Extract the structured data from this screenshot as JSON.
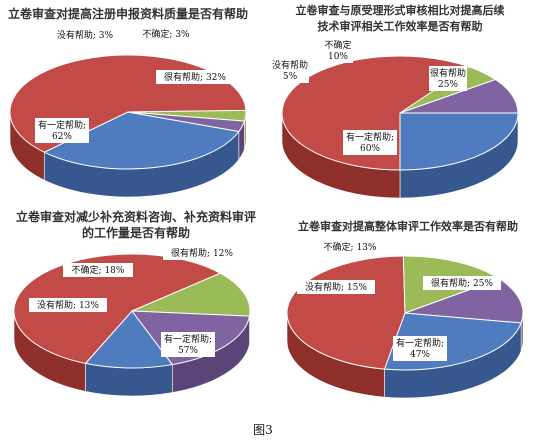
{
  "caption": "图3",
  "colors": {
    "blue": "#4f7cbf",
    "red": "#c24a47",
    "green": "#9bbb59",
    "purple": "#8064a2",
    "blue_side": "#36588f",
    "red_side": "#8e2f2c",
    "green_side": "#6f8a3d",
    "purple_side": "#5b4578"
  },
  "chart_data": [
    {
      "type": "pie",
      "title_lines": [
        "立卷审查对提高注册申报资料质量是否有帮助"
      ],
      "series": [
        {
          "name": "很有帮助",
          "value": 32,
          "label": "很有帮助; 32%",
          "color": "blue"
        },
        {
          "name": "有一定帮助",
          "value": 62,
          "label": "有一定帮助;|62%",
          "color": "red"
        },
        {
          "name": "没有帮助",
          "value": 3,
          "label": "没有帮助; 3%",
          "color": "green"
        },
        {
          "name": "不确定",
          "value": 3,
          "label": "不确定; 3%",
          "color": "purple"
        }
      ]
    },
    {
      "type": "pie",
      "title_lines": [
        "立卷审查与原受理形式审核相比对提高后续",
        "技术审评相关工作效率是否有帮助"
      ],
      "series": [
        {
          "name": "很有帮助",
          "value": 25,
          "label": "很有帮助|25%",
          "color": "blue"
        },
        {
          "name": "有一定帮助",
          "value": 60,
          "label": "有一定帮助;|60%",
          "color": "red"
        },
        {
          "name": "没有帮助",
          "value": 5,
          "label": "没有帮助|5%",
          "color": "green"
        },
        {
          "name": "不确定",
          "value": 10,
          "label": "不确定|10%",
          "color": "purple"
        }
      ]
    },
    {
      "type": "pie",
      "title_lines": [
        "立卷审查对减少补充资料咨询、补充资料审评",
        "的工作量是否有帮助"
      ],
      "series": [
        {
          "name": "很有帮助",
          "value": 12,
          "label": "很有帮助; 12%",
          "color": "blue"
        },
        {
          "name": "有一定帮助",
          "value": 57,
          "label": "有一定帮助;|57%",
          "color": "red"
        },
        {
          "name": "没有帮助",
          "value": 13,
          "label": "没有帮助; 13%",
          "color": "green"
        },
        {
          "name": "不确定",
          "value": 18,
          "label": "不确定; 18%",
          "color": "purple"
        }
      ]
    },
    {
      "type": "pie",
      "title_lines": [
        "立卷审查对提高整体审评工作效率是否有帮助"
      ],
      "series": [
        {
          "name": "很有帮助",
          "value": 25,
          "label": "很有帮助; 25%",
          "color": "blue"
        },
        {
          "name": "有一定帮助",
          "value": 47,
          "label": "有一定帮助;|47%",
          "color": "red"
        },
        {
          "name": "没有帮助",
          "value": 15,
          "label": "没有帮助; 15%",
          "color": "green"
        },
        {
          "name": "不确定",
          "value": 13,
          "label": "不确定; 13%",
          "color": "purple"
        }
      ]
    }
  ]
}
